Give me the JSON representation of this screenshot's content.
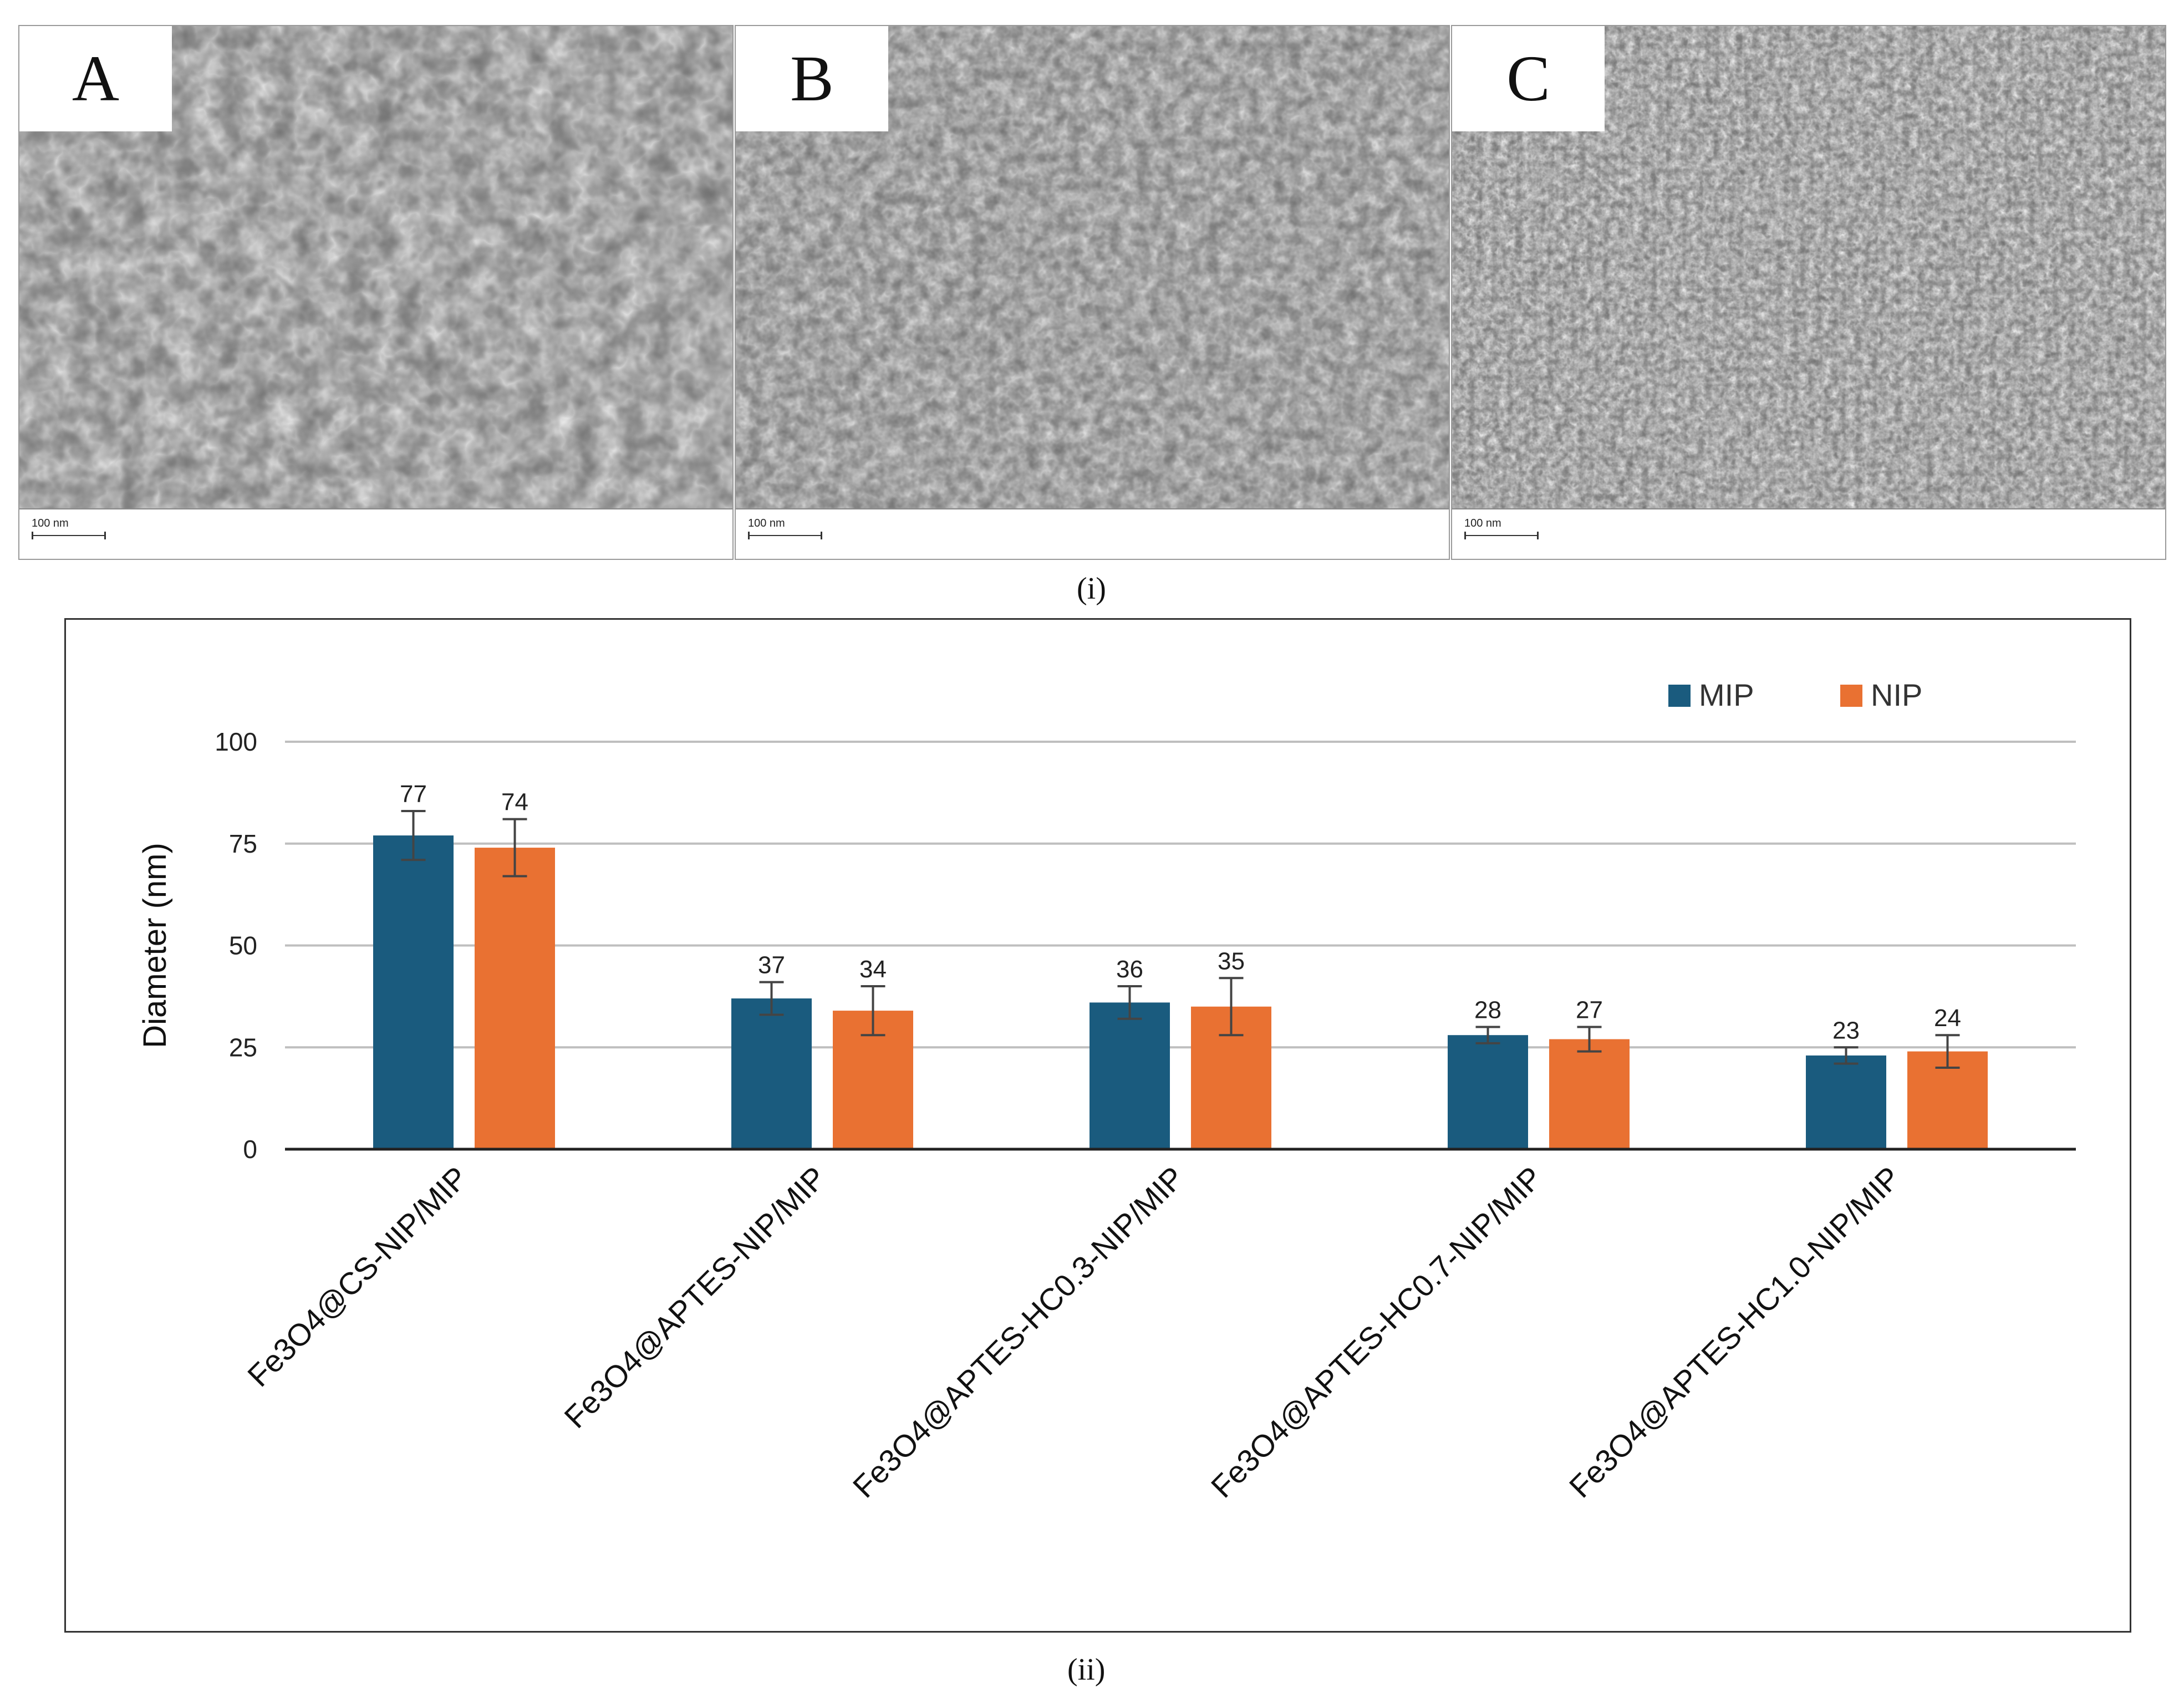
{
  "figure": {
    "caption_i": "(i)",
    "caption_ii": "(ii)"
  },
  "sem_panels": [
    {
      "letter": "A",
      "scale_label": "100 nm"
    },
    {
      "letter": "B",
      "scale_label": "100 nm"
    },
    {
      "letter": "C",
      "scale_label": "100 nm"
    }
  ],
  "colors": {
    "mip": "#1a5b7e",
    "nip": "#e97132",
    "grid": "#bfbfbf",
    "axis": "#222222",
    "error": "#444444"
  },
  "chart_data": {
    "type": "bar",
    "title": "",
    "xlabel": "",
    "ylabel": "Diameter (nm)",
    "ylim": [
      0,
      100
    ],
    "yticks": [
      0,
      25,
      50,
      75,
      100
    ],
    "grid": true,
    "legend_position": "top-right",
    "categories": [
      "Fe3O4@CS-NIP/MIP",
      "Fe3O4@APTES-NIP/MIP",
      "Fe3O4@APTES-HC0.3-NIP/MIP",
      "Fe3O4@APTES-HC0.7-NIP/MIP",
      "Fe3O4@APTES-HC1.0-NIP/MIP"
    ],
    "series": [
      {
        "name": "MIP",
        "values": [
          77,
          37,
          36,
          28,
          23
        ],
        "errors": [
          6,
          4,
          4,
          2,
          2
        ]
      },
      {
        "name": "NIP",
        "values": [
          74,
          34,
          35,
          27,
          24
        ],
        "errors": [
          7,
          6,
          7,
          3,
          4
        ]
      }
    ]
  }
}
